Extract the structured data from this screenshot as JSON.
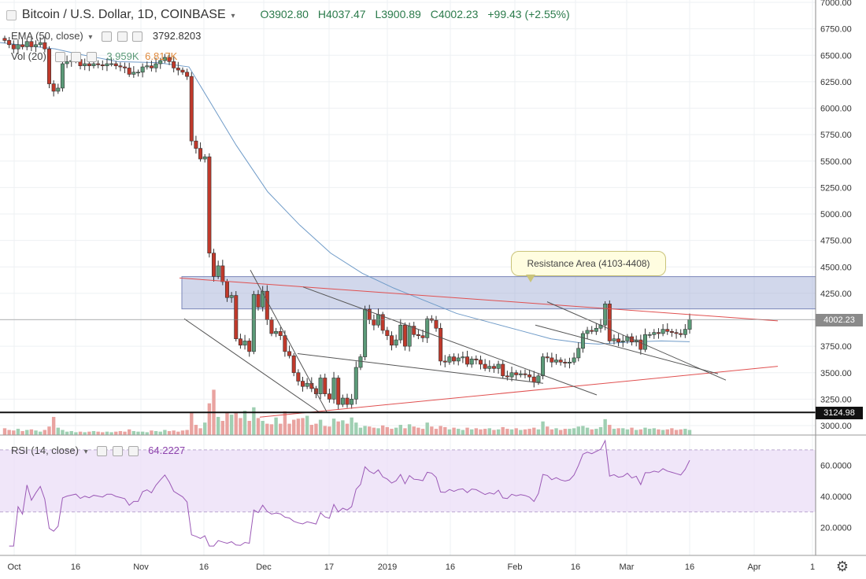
{
  "header": {
    "symbol": "Bitcoin / U.S. Dollar, 1D, COINBASE",
    "open": "O3902.80",
    "high": "H4037.47",
    "low": "L3900.89",
    "close": "C4002.23",
    "change": "+99.43 (+2.55%)"
  },
  "indicators": {
    "ema_label": "EMA (50, close)",
    "ema_value": "3792.8203",
    "vol_label": "Vol (20)",
    "vol_value1": "3.959K",
    "vol_value2": "6.817K",
    "rsi_label": "RSI (14, close)",
    "rsi_value": "64.2227"
  },
  "annotation": "Resistance Area (4103-4408)",
  "price_tags": {
    "last": "4002.23",
    "support": "3124.98"
  },
  "colors": {
    "up": "#5b9a78",
    "down": "#c0392b",
    "ema": "#6f9bc8",
    "rsi_line": "#9b59b6",
    "resistance_zone": "#9aa7d2",
    "trend_red": "#e05050"
  },
  "chart_data": [
    {
      "type": "candlestick",
      "title": "Bitcoin / U.S. Dollar, 1D, COINBASE",
      "y_ticks": [
        "7000.00",
        "6750.00",
        "6500.00",
        "6250.00",
        "6000.00",
        "5750.00",
        "5500.00",
        "5250.00",
        "5000.00",
        "4750.00",
        "4500.00",
        "4250.00",
        "4000.00",
        "3750.00",
        "3500.00",
        "3250.00",
        "3000.00"
      ],
      "ylim": [
        3000,
        7000
      ],
      "x_ticks": [
        "Oct",
        "16",
        "Nov",
        "16",
        "Dec",
        "17",
        "2019",
        "16",
        "Feb",
        "16",
        "Mar",
        "16",
        "Apr",
        "1"
      ],
      "resistance_zone": [
        4103,
        4408
      ],
      "support_level": 3124.98,
      "last_close": 4002.23,
      "close": [
        6640,
        6600,
        6560,
        6600,
        6580,
        6630,
        6580,
        6600,
        6620,
        6560,
        6230,
        6160,
        6190,
        6420,
        6440,
        6450,
        6460,
        6400,
        6420,
        6400,
        6420,
        6410,
        6400,
        6420,
        6420,
        6400,
        6390,
        6380,
        6320,
        6340,
        6340,
        6390,
        6400,
        6380,
        6420,
        6450,
        6480,
        6440,
        6380,
        6360,
        6340,
        6300,
        5690,
        5620,
        5520,
        5540,
        4630,
        4410,
        4510,
        4360,
        4210,
        4230,
        3820,
        3760,
        3800,
        3700,
        4240,
        4120,
        4270,
        4000,
        3870,
        3890,
        3850,
        3700,
        3660,
        3500,
        3420,
        3370,
        3400,
        3350,
        3300,
        3450,
        3300,
        3250,
        3450,
        3200,
        3260,
        3200,
        3250,
        3550,
        3650,
        4100,
        4000,
        3950,
        4050,
        3900,
        3850,
        3760,
        3810,
        3950,
        3750,
        3940,
        3860,
        3850,
        3830,
        4010,
        3995,
        3920,
        3610,
        3600,
        3650,
        3610,
        3640,
        3650,
        3580,
        3630,
        3620,
        3580,
        3540,
        3560,
        3540,
        3580,
        3470,
        3460,
        3500,
        3480,
        3490,
        3480,
        3460,
        3410,
        3470,
        3650,
        3640,
        3600,
        3620,
        3600,
        3590,
        3600,
        3640,
        3730,
        3870,
        3900,
        3890,
        3920,
        3950,
        4150,
        3800,
        3820,
        3790,
        3800,
        3840,
        3790,
        3810,
        3720,
        3860,
        3860,
        3880,
        3870,
        3910,
        3890,
        3880,
        3870,
        3860,
        3910,
        4002
      ],
      "ema50_points": [
        [
          0,
          6620
        ],
        [
          70,
          6560
        ],
        [
          100,
          6510
        ],
        [
          150,
          6440
        ],
        [
          200,
          6430
        ],
        [
          240,
          6390
        ],
        [
          300,
          5650
        ],
        [
          340,
          5210
        ],
        [
          380,
          4900
        ],
        [
          420,
          4630
        ],
        [
          460,
          4440
        ],
        [
          500,
          4300
        ],
        [
          540,
          4180
        ],
        [
          580,
          4060
        ],
        [
          620,
          3980
        ],
        [
          660,
          3900
        ],
        [
          700,
          3820
        ],
        [
          740,
          3780
        ],
        [
          760,
          3770
        ],
        [
          800,
          3790
        ],
        [
          840,
          3800
        ],
        [
          876,
          3793
        ]
      ],
      "trend_lines": [
        {
          "name": "red-resistance",
          "color": "red",
          "points": [
            [
              228,
              4395
            ],
            [
              988,
              3990
            ]
          ]
        },
        {
          "name": "red-support",
          "color": "red",
          "points": [
            [
              330,
              3080
            ],
            [
              988,
              3560
            ]
          ]
        },
        {
          "name": "grey-1",
          "color": "grey",
          "points": [
            [
              234,
              4010
            ],
            [
              405,
              3130
            ]
          ]
        },
        {
          "name": "grey-2",
          "color": "grey",
          "points": [
            [
              318,
              4470
            ],
            [
              415,
              3130
            ]
          ]
        },
        {
          "name": "grey-3",
          "color": "grey",
          "points": [
            [
              385,
              4310
            ],
            [
              758,
              3290
            ]
          ]
        },
        {
          "name": "grey-4",
          "color": "grey",
          "points": [
            [
              378,
              3680
            ],
            [
              690,
              3400
            ]
          ]
        },
        {
          "name": "grey-5",
          "color": "grey",
          "points": [
            [
              695,
              4170
            ],
            [
              922,
              3430
            ]
          ]
        },
        {
          "name": "grey-6",
          "color": "grey",
          "points": [
            [
              680,
              3950
            ],
            [
              912,
              3490
            ]
          ]
        }
      ]
    },
    {
      "type": "bar",
      "title": "Vol (20)",
      "ylim": [
        0,
        10
      ],
      "values": [
        1.2,
        0.9,
        0.8,
        1.1,
        0.7,
        0.9,
        1.0,
        0.8,
        0.6,
        0.9,
        1.5,
        3.2,
        1.3,
        0.9,
        0.6,
        0.7,
        0.5,
        0.6,
        0.5,
        0.6,
        0.7,
        0.6,
        0.5,
        0.6,
        0.5,
        0.6,
        0.7,
        0.6,
        1.0,
        0.7,
        0.6,
        0.6,
        0.5,
        0.8,
        0.7,
        0.6,
        0.9,
        0.7,
        0.8,
        0.6,
        0.8,
        0.9,
        4.0,
        1.8,
        1.2,
        2.2,
        5.6,
        8.0,
        3.2,
        2.5,
        4.1,
        3.6,
        3.9,
        3.0,
        4.3,
        2.5,
        4.9,
        3.0,
        2.5,
        2.0,
        1.9,
        3.1,
        2.0,
        4.2,
        2.0,
        2.7,
        2.9,
        3.0,
        3.4,
        1.8,
        2.0,
        2.7,
        1.6,
        1.5,
        2.9,
        2.4,
        2.6,
        2.0,
        3.1,
        2.2,
        1.3,
        1.6,
        1.5,
        1.3,
        1.2,
        1.7,
        1.4,
        1.1,
        1.3,
        1.8,
        1.2,
        1.9,
        1.5,
        1.3,
        1.1,
        2.2,
        1.5,
        1.1,
        1.6,
        1.4,
        1.0,
        1.3,
        1.1,
        0.9,
        1.3,
        1.0,
        1.2,
        1.0,
        1.1,
        1.2,
        0.9,
        1.0,
        1.4,
        1.1,
        1.0,
        1.2,
        0.9,
        1.0,
        1.1,
        1.3,
        1.0,
        2.4,
        1.5,
        1.0,
        1.2,
        0.9,
        1.1,
        1.1,
        1.2,
        1.5,
        1.6,
        1.3,
        1.0,
        1.1,
        1.4,
        2.8,
        1.8,
        1.1,
        1.2,
        1.2,
        1.0,
        1.3,
        0.9,
        1.0,
        1.3,
        1.1,
        1.2,
        1.0,
        0.9,
        1.0,
        1.2,
        0.9,
        1.0,
        1.1,
        0.9
      ]
    },
    {
      "type": "line",
      "title": "RSI (14, close)",
      "y_ticks": [
        "60.0000",
        "40.0000",
        "20.0000"
      ],
      "ylim": [
        5,
        75
      ],
      "band": [
        30,
        70
      ],
      "last_value": 64.2227
    }
  ]
}
